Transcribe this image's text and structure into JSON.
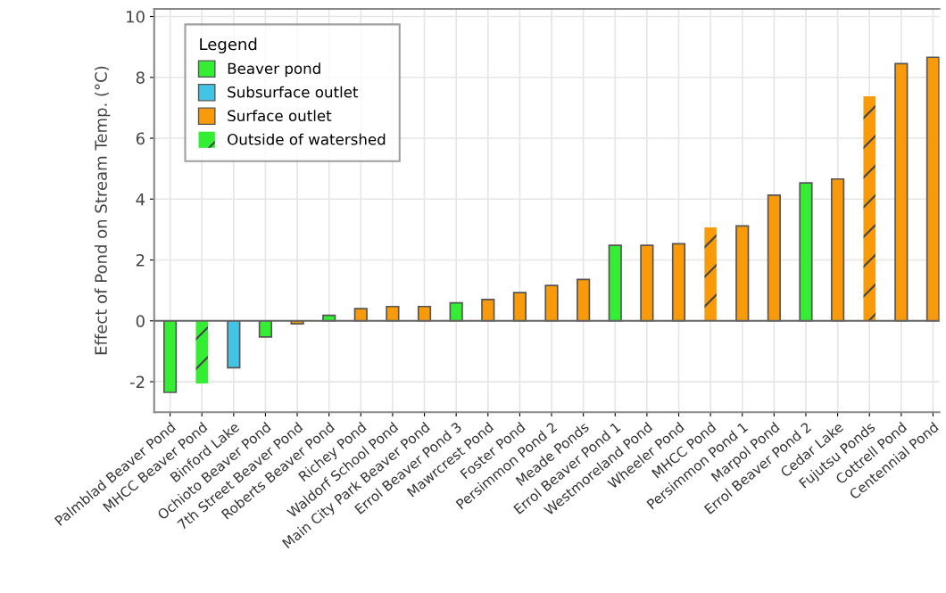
{
  "chart_data": {
    "type": "bar",
    "ylabel": "Effect of Pond on Stream Temp. (°C)",
    "categories": [
      "Palmblad Beaver Pond",
      "MHCC Beaver Pond",
      "Binford Lake",
      "Ochioto Beaver Pond",
      "7th Street Beaver Pond",
      "Roberts Beaver Pond",
      "Richey Pond",
      "Waldorf School Pond",
      "Main City Park Beaver Pond",
      "Errol Beaver Pond 3",
      "Mawrcrest Pond",
      "Foster Pond",
      "Persimmon Pond 2",
      "Meade Ponds",
      "Errol Beaver Pond 1",
      "Westmoreland Pond",
      "Wheeler Pond",
      "MHCC Pond",
      "Persimmon Pond 1",
      "Marpol Pond",
      "Errol Beaver Pond 2",
      "Cedar Lake",
      "Fujutsu Ponds",
      "Cottrell Pond",
      "Centennial Pond"
    ],
    "series": [
      {
        "name": "Beaver pond",
        "color": "#33ee33",
        "values": [
          -2.35,
          null,
          null,
          -0.53,
          null,
          0.18,
          null,
          null,
          null,
          0.59,
          null,
          null,
          null,
          null,
          2.48,
          null,
          null,
          null,
          null,
          null,
          4.53,
          null,
          null,
          null,
          null
        ]
      },
      {
        "name": "Subsurface outlet",
        "color": "#44c4e4",
        "values": [
          null,
          null,
          -1.54,
          null,
          null,
          null,
          null,
          null,
          null,
          null,
          null,
          null,
          null,
          null,
          null,
          null,
          null,
          null,
          null,
          null,
          null,
          null,
          null,
          null,
          null
        ]
      },
      {
        "name": "Surface outlet",
        "color": "#f89a0a",
        "values": [
          null,
          null,
          null,
          null,
          -0.1,
          null,
          0.4,
          0.47,
          0.47,
          null,
          0.7,
          0.93,
          1.16,
          1.36,
          null,
          2.48,
          2.53,
          null,
          3.12,
          4.13,
          null,
          4.66,
          null,
          8.45,
          8.66
        ]
      },
      {
        "name": "Outside of watershed",
        "colors": [
          null,
          "#33ee33",
          null,
          null,
          null,
          null,
          null,
          null,
          null,
          null,
          null,
          null,
          null,
          null,
          null,
          null,
          null,
          "#f89a0a",
          null,
          null,
          null,
          null,
          "#f89a0a",
          null,
          null
        ],
        "values": [
          null,
          -2.06,
          null,
          null,
          null,
          null,
          null,
          null,
          null,
          null,
          null,
          null,
          null,
          null,
          null,
          null,
          null,
          3.07,
          null,
          null,
          null,
          null,
          7.38,
          null,
          null
        ]
      }
    ],
    "ylim": [
      -3,
      10.25
    ],
    "yticks": [
      -2,
      0,
      2,
      4,
      6,
      8,
      10
    ],
    "grid": true,
    "legend": "top left",
    "legend_title": "Legend"
  }
}
